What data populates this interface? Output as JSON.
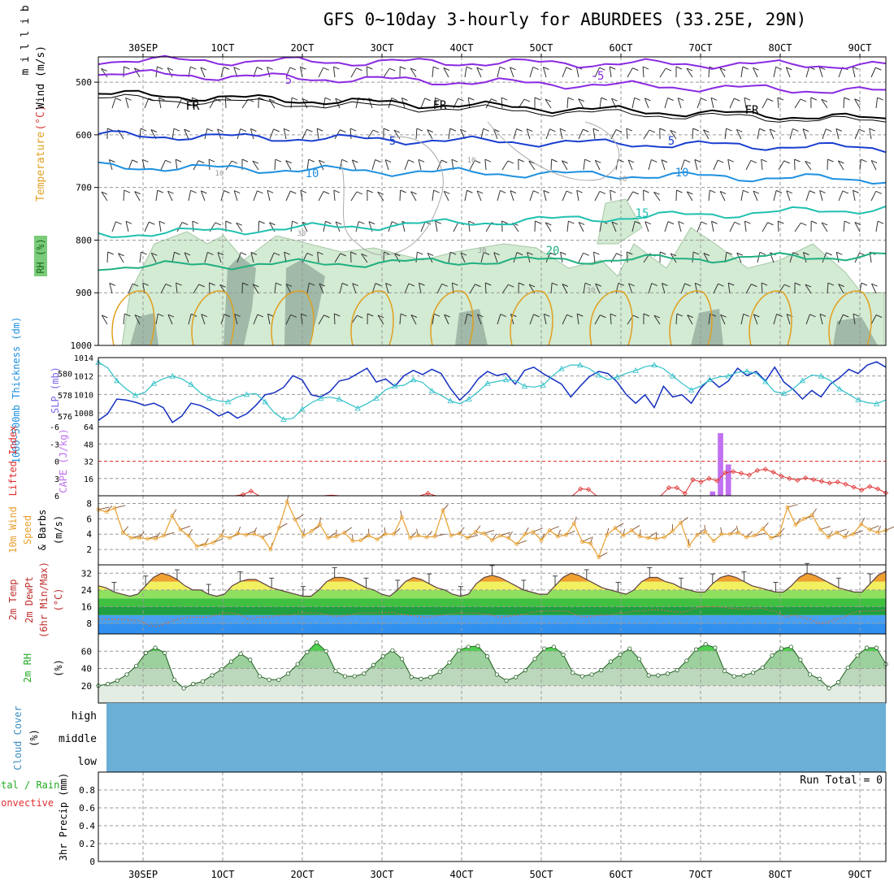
{
  "title": "GFS 0~10day 3-hourly for ABURDEES (33.25E, 29N)",
  "date_axis": {
    "top_labels": [
      "30SEP",
      "1OCT",
      "2OCT",
      "3OCT",
      "4OCT",
      "5OCT",
      "6OCT",
      "7OCT",
      "8OCT",
      "9OCT"
    ],
    "bottom_labels": [
      "30SEP",
      "1OCT",
      "2OCT",
      "3OCT",
      "4OCT",
      "5OCT",
      "6OCT",
      "7OCT",
      "8OCT",
      "9OCT"
    ],
    "top_labels_display": [
      "30SEP",
      "1OCT",
      "2OCT",
      "3OCT",
      "4OCT",
      "5OCT",
      "6OCT",
      "7OCT",
      "8OCT",
      "9OCT"
    ]
  },
  "panels": {
    "upper_air": {
      "ylabel_parts": [
        "RH (%)",
        "Temperature",
        "(°C)",
        "Wind (m/s)"
      ],
      "ylabel_unit": "m i l l i b a r s",
      "yticks": [
        500,
        600,
        700,
        800,
        900,
        1000
      ],
      "contour_labels": [
        "5",
        "-5",
        "FR",
        "FR",
        "FR",
        "5",
        "5",
        "10",
        "10",
        "10",
        "10",
        "10",
        "15",
        "20",
        "30",
        "30",
        "30"
      ],
      "colors": {
        "temp_neg": "#8a2be2",
        "temp_fr": "#000000",
        "temp_5": "#1a3fd0",
        "temp_10": "#1e90e0",
        "temp_15": "#20c0b0",
        "temp_20": "#20b080",
        "temp_warm": "#e0a020",
        "rh_fill": "#cfe8cf",
        "rh_dark": "#8fa89a"
      }
    },
    "thickness_slp": {
      "ylabel_left": "1000-500mb Thickness (dm)",
      "ylabel_right": "SLP (mb)",
      "thickness_ticks": [
        576,
        578,
        580
      ],
      "slp_ticks": [
        1008,
        1010,
        1012,
        1014
      ],
      "colors": {
        "thickness": "#1530c0",
        "slp": "#30c0c8"
      }
    },
    "cape_li": {
      "ylabel_left": "Lifted Index",
      "ylabel_right": "CAPE (J/kg)",
      "li_ticks": [
        "-6",
        "-3",
        "0",
        "3",
        "6"
      ],
      "cape_ticks": [
        16,
        32,
        48,
        64
      ],
      "colors": {
        "li": "#e03030",
        "cape": "#c070f0"
      }
    },
    "wind10m": {
      "ylabel": [
        "10m Wind",
        "Speed",
        "& Barbs",
        "(m/s)"
      ],
      "yticks": [
        2,
        4,
        6,
        8
      ],
      "colors": {
        "speed": "#e8a030",
        "barbs": "#805030"
      }
    },
    "temp2m": {
      "ylabel": [
        "2m Temp",
        "2m DewPt",
        "(6hr Min/Max)",
        "(°C)"
      ],
      "yticks": [
        8,
        16,
        24,
        32
      ]
    },
    "rh2m": {
      "ylabel": [
        "2m RH",
        "(%)"
      ],
      "yticks": [
        20,
        40,
        60
      ]
    },
    "cloud": {
      "ylabel": [
        "Cloud Cover",
        "(%)"
      ],
      "levels": [
        "high",
        "middle",
        "low"
      ],
      "color": "#6baed6"
    },
    "precip": {
      "ylabel": [
        "Total / Rain",
        "Convective",
        "3hr Precip (mm)"
      ],
      "yticks": [
        "0",
        "0.2",
        "0.4",
        "0.6",
        "0.8"
      ],
      "run_total_label": "Run Total = 0"
    }
  },
  "chart_data": [
    {
      "type": "line",
      "title": "",
      "x_unit": "3-hourly steps from 29SEP 18Z",
      "series": [
        {
          "name": "1000-500mb Thickness (dm)",
          "values": [
            575.6,
            576.2,
            577.6,
            577.5,
            577.3,
            577.0,
            577.2,
            576.8,
            575.4,
            576.0,
            577.2,
            577.0,
            576.6,
            576.0,
            576.4,
            575.8,
            576.2,
            577.0,
            578.0,
            578.2,
            578.7,
            579.8,
            579.4,
            578.0,
            577.8,
            578.3,
            579.3,
            579.5,
            580.0,
            580.5,
            579.2,
            579.5,
            578.8,
            579.8,
            580.3,
            579.9,
            580.4,
            580.0,
            578.6,
            577.5,
            578.3,
            579.5,
            580.2,
            579.8,
            580.0,
            579.0,
            580.3,
            580.6,
            580.0,
            579.5,
            579.0,
            577.8,
            578.8,
            579.7,
            580.2,
            580.0,
            579.2,
            578.0,
            577.2,
            578.0,
            576.8,
            578.8,
            577.8,
            578.0,
            577.2,
            578.6,
            579.5,
            578.7,
            579.3,
            580.5,
            579.8,
            580.2,
            579.3,
            580.6,
            579.2,
            578.5,
            577.6,
            578.4,
            577.8,
            579.0,
            579.6,
            580.4,
            580.0,
            580.8,
            581.1,
            580.6
          ]
        },
        {
          "name": "SLP (mb)",
          "values": [
            1013.5,
            1012.9,
            1011.5,
            1010.6,
            1009.9,
            1010.2,
            1011.2,
            1011.7,
            1012.0,
            1011.7,
            1011.1,
            1010.2,
            1009.6,
            1009.3,
            1009.2,
            1009.7,
            1010.0,
            1010.1,
            1009.2,
            1008.0,
            1007.3,
            1007.4,
            1008.4,
            1009.1,
            1009.6,
            1009.7,
            1009.5,
            1009.0,
            1008.5,
            1009.0,
            1009.6,
            1010.5,
            1010.9,
            1011.0,
            1011.6,
            1011.3,
            1010.4,
            1009.9,
            1009.3,
            1009.0,
            1009.5,
            1010.3,
            1011.2,
            1011.4,
            1011.6,
            1011.5,
            1010.9,
            1010.8,
            1011.0,
            1012.0,
            1012.8,
            1013.2,
            1013.2,
            1012.8,
            1012.1,
            1011.6,
            1011.9,
            1012.3,
            1012.6,
            1013.0,
            1013.2,
            1012.8,
            1012.0,
            1011.2,
            1010.5,
            1010.9,
            1011.6,
            1011.9,
            1012.0,
            1012.4,
            1012.5,
            1012.3,
            1011.4,
            1010.3,
            1010.1,
            1010.6,
            1011.5,
            1012.1,
            1012.0,
            1011.5,
            1010.6,
            1010.0,
            1009.4,
            1009.1,
            1009.0,
            1009.4
          ]
        }
      ]
    },
    {
      "type": "line",
      "title": "",
      "series": [
        {
          "name": "Lifted Index",
          "values": [
            6,
            6,
            6,
            6,
            6,
            6,
            6,
            6,
            6,
            6,
            6,
            6,
            6,
            6,
            6,
            6,
            6,
            6,
            5.8,
            5.2,
            6,
            6,
            6,
            6,
            6,
            6,
            6,
            6,
            6,
            5.9,
            6,
            6,
            6,
            6,
            6,
            6,
            6,
            6,
            6,
            6,
            6,
            5.6,
            6,
            6,
            6,
            6,
            6,
            6,
            6,
            6,
            6,
            6,
            6,
            6,
            6,
            6,
            6,
            6,
            6,
            6,
            4.8,
            4.9,
            6,
            6,
            6,
            6,
            6,
            6,
            6,
            6,
            6,
            4.6,
            4.6,
            5.6,
            3.2,
            3.6,
            3.0,
            3.4,
            2.0,
            1.8,
            2.1,
            2.4,
            1.6,
            1.4,
            1.9,
            2.6,
            3.0,
            3.3,
            2.9,
            3.2,
            3.5,
            3.8,
            3.6,
            4.0,
            4.5,
            5.0,
            4.4,
            4.8,
            5.5
          ]
        },
        {
          "name": "CAPE (J/kg)",
          "values": [
            0,
            0,
            0,
            0,
            0,
            0,
            0,
            0,
            0,
            0,
            0,
            0,
            0,
            0,
            0,
            0,
            0,
            0,
            0,
            0,
            0,
            0,
            0,
            0,
            0,
            0,
            0,
            0,
            0,
            0,
            0,
            0,
            0,
            0,
            0,
            0,
            0,
            0,
            0,
            0,
            0,
            0,
            0,
            0,
            0,
            0,
            0,
            0,
            0,
            0,
            0,
            0,
            0,
            0,
            0,
            0,
            0,
            0,
            0,
            0,
            0,
            0,
            0,
            0,
            0,
            0,
            0,
            0,
            0,
            0,
            0,
            0,
            0,
            0,
            0,
            0,
            0,
            0,
            4,
            58,
            29,
            0,
            0,
            0,
            0,
            0,
            0,
            0,
            0,
            0,
            0,
            0,
            0,
            0,
            0,
            0,
            0,
            0,
            0,
            0,
            0
          ]
        }
      ]
    },
    {
      "type": "line",
      "title": "",
      "series": [
        {
          "name": "10m Wind Speed (m/s)",
          "values": [
            7.2,
            6.9,
            7.4,
            4.2,
            3.5,
            3.5,
            3.4,
            3.4,
            3.8,
            6.4,
            4.6,
            3.8,
            2.4,
            2.6,
            2.9,
            3.8,
            3.5,
            4.1,
            3.9,
            4.0,
            3.6,
            2.0,
            4.8,
            8.2,
            5.9,
            3.8,
            4.4,
            5.3,
            3.5,
            3.7,
            4.2,
            3.1,
            3.2,
            3.8,
            3.3,
            4.0,
            4.0,
            6.2,
            3.5,
            3.8,
            3.6,
            3.7,
            7.1,
            3.8,
            4.1,
            3.5,
            4.3,
            4.1,
            3.2,
            3.8,
            3.5,
            2.7,
            4.0,
            4.3,
            3.2,
            4.5,
            3.7,
            3.9,
            5.4,
            3.0,
            2.8,
            1.0,
            3.9,
            4.8,
            3.8,
            4.5,
            3.7,
            3.5,
            3.4,
            3.6,
            4.4,
            5.5,
            2.5,
            3.9,
            4.3,
            3.1,
            4.0,
            4.0,
            4.2,
            3.6,
            3.8,
            4.7,
            3.5,
            4.0,
            7.5,
            5.2,
            6.0,
            6.5,
            4.6,
            3.6,
            4.2,
            3.6,
            4.0,
            5.3,
            4.6,
            4.2,
            4.5
          ]
        }
      ]
    },
    {
      "type": "area",
      "title": "",
      "series": [
        {
          "name": "2m Temp (°C)",
          "values": [
            26,
            25,
            23,
            22,
            21,
            22,
            26,
            30,
            32,
            31,
            29,
            26,
            24,
            24,
            22,
            21,
            22,
            26,
            28,
            29,
            29,
            27,
            25,
            24,
            23,
            22,
            21,
            21,
            24,
            28,
            30,
            30,
            29,
            27,
            25,
            24,
            22,
            21,
            24,
            28,
            30,
            29,
            27,
            25,
            24,
            22,
            21,
            22,
            27,
            30,
            31,
            30,
            28,
            26,
            24,
            23,
            22,
            22,
            26,
            30,
            32,
            31,
            29,
            27,
            25,
            24,
            23,
            22,
            24,
            28,
            30,
            30,
            28,
            27,
            25,
            24,
            23,
            23,
            27,
            30,
            31,
            30,
            28,
            26,
            25,
            24,
            23,
            23,
            26,
            30,
            32,
            31,
            29,
            27,
            25,
            24,
            23,
            23,
            27,
            31,
            33
          ]
        },
        {
          "name": "2m DewPt (°C)",
          "values": [
            10,
            10,
            10,
            10,
            9.5,
            9.5,
            7,
            6.5,
            8,
            9.5,
            10.5,
            11,
            11,
            11,
            12,
            13,
            13,
            12,
            10,
            11,
            11,
            11.5,
            12,
            12,
            13,
            13,
            13,
            12.5,
            11.5,
            11.5,
            12,
            13,
            13,
            13,
            13,
            13.5,
            12.5,
            12,
            11.5,
            11,
            11.5,
            12,
            12.5,
            13,
            13,
            13,
            12.5,
            12,
            11,
            11.5,
            12,
            12.5,
            13.5,
            14,
            14,
            14,
            14,
            12,
            11,
            11.5,
            12,
            12,
            13,
            13,
            14,
            14,
            14.5,
            14.5,
            14,
            13.5,
            13.5,
            15,
            16,
            16,
            16,
            15.5,
            15,
            15,
            15,
            15.5,
            14.5,
            13.5,
            11,
            12,
            11,
            10,
            8,
            8.5,
            10,
            11,
            13,
            14,
            14,
            14,
            14.5
          ]
        }
      ]
    },
    {
      "type": "area",
      "title": "",
      "series": [
        {
          "name": "2m RH (%)",
          "values": [
            20,
            22,
            26,
            33,
            43,
            58,
            64,
            58,
            27,
            17,
            22,
            25,
            32,
            39,
            48,
            57,
            50,
            31,
            27,
            27,
            34,
            45,
            59,
            70,
            60,
            37,
            31,
            31,
            34,
            44,
            54,
            61,
            51,
            30,
            28,
            30,
            36,
            47,
            61,
            65,
            66,
            54,
            33,
            26,
            30,
            38,
            51,
            63,
            65,
            56,
            35,
            31,
            33,
            38,
            48,
            56,
            63,
            51,
            32,
            32,
            34,
            38,
            49,
            62,
            68,
            64,
            37,
            31,
            32,
            35,
            41,
            55,
            63,
            65,
            50,
            33,
            28,
            17,
            24,
            41,
            55,
            64,
            64,
            45
          ]
        }
      ]
    },
    {
      "type": "bar",
      "title": "",
      "series": [
        {
          "name": "3hr Precip (mm)",
          "values": [
            0
          ]
        }
      ]
    }
  ]
}
